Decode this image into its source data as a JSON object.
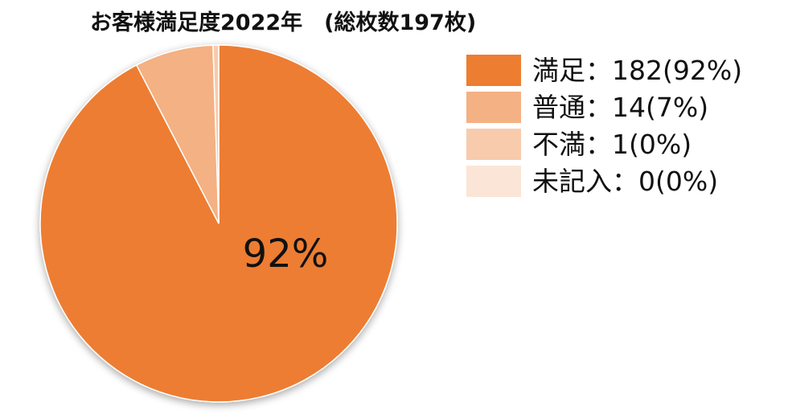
{
  "chart_data": {
    "type": "pie",
    "title": "お客様満足度2022年　(総枚数197枚)",
    "slices": [
      {
        "name": "満足",
        "value": 182,
        "percent": 92,
        "legend_label": "満足：182(92%)",
        "color": "#ED7D31"
      },
      {
        "name": "普通",
        "value": 14,
        "percent": 7,
        "legend_label": "普通：14(7%)",
        "color": "#F4B183"
      },
      {
        "name": "不満",
        "value": 1,
        "percent": 0,
        "legend_label": "不満：1(0%)",
        "color": "#F8CBAD"
      },
      {
        "name": "未記入",
        "value": 0,
        "percent": 0,
        "legend_label": "未記入：0(0%)",
        "color": "#FBE5D6"
      }
    ],
    "data_labels": [
      {
        "slice": "満足",
        "text": "92%"
      }
    ],
    "legend_position": "right",
    "start_angle": "top",
    "direction": "clockwise"
  }
}
